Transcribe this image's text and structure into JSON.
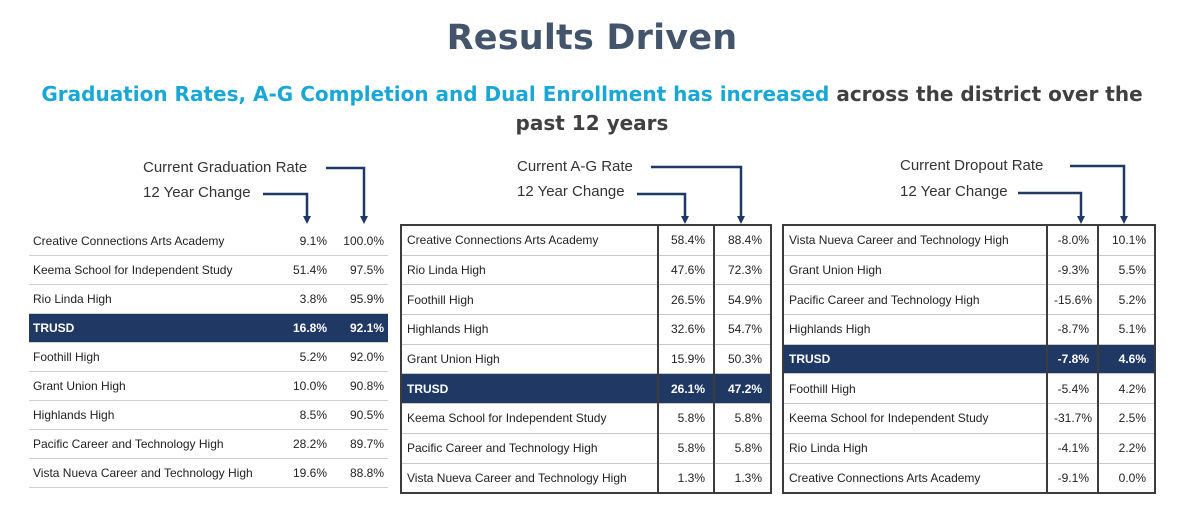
{
  "title": "Results Driven",
  "subtitle": {
    "highlight": "Graduation Rates, A-G Completion and Dual Enrollment has increased",
    "rest": " across the district over the past 12 years"
  },
  "colors": {
    "title": "#44546a",
    "highlight_text": "#1aa7d6",
    "highlight_row": "#1f3864",
    "arrow": "#1f3864"
  },
  "graduation": {
    "rate_label": "Current Graduation Rate",
    "change_label": "12 Year Change",
    "rows": [
      {
        "school": "Creative Connections Arts Academy",
        "change": "9.1%",
        "rate": "100.0%",
        "highlight": false
      },
      {
        "school": "Keema School for Independent Study",
        "change": "51.4%",
        "rate": "97.5%",
        "highlight": false
      },
      {
        "school": "Rio Linda High",
        "change": "3.8%",
        "rate": "95.9%",
        "highlight": false
      },
      {
        "school": "TRUSD",
        "change": "16.8%",
        "rate": "92.1%",
        "highlight": true
      },
      {
        "school": "Foothill High",
        "change": "5.2%",
        "rate": "92.0%",
        "highlight": false
      },
      {
        "school": "Grant Union High",
        "change": "10.0%",
        "rate": "90.8%",
        "highlight": false
      },
      {
        "school": "Highlands High",
        "change": "8.5%",
        "rate": "90.5%",
        "highlight": false
      },
      {
        "school": "Pacific Career and Technology High",
        "change": "28.2%",
        "rate": "89.7%",
        "highlight": false
      },
      {
        "school": "Vista Nueva Career and Technology High",
        "change": "19.6%",
        "rate": "88.8%",
        "highlight": false
      }
    ]
  },
  "ag": {
    "rate_label": "Current A-G  Rate",
    "change_label": "12 Year Change",
    "rows": [
      {
        "school": "Creative Connections Arts Academy",
        "change": "58.4%",
        "rate": "88.4%",
        "highlight": false
      },
      {
        "school": "Rio Linda High",
        "change": "47.6%",
        "rate": "72.3%",
        "highlight": false
      },
      {
        "school": "Foothill High",
        "change": "26.5%",
        "rate": "54.9%",
        "highlight": false
      },
      {
        "school": "Highlands High",
        "change": "32.6%",
        "rate": "54.7%",
        "highlight": false
      },
      {
        "school": "Grant Union High",
        "change": "15.9%",
        "rate": "50.3%",
        "highlight": false
      },
      {
        "school": "TRUSD",
        "change": "26.1%",
        "rate": "47.2%",
        "highlight": true
      },
      {
        "school": "Keema School for Independent Study",
        "change": "5.8%",
        "rate": "5.8%",
        "highlight": false
      },
      {
        "school": "Pacific Career and Technology High",
        "change": "5.8%",
        "rate": "5.8%",
        "highlight": false
      },
      {
        "school": "Vista Nueva Career and Technology High",
        "change": "1.3%",
        "rate": "1.3%",
        "highlight": false
      }
    ]
  },
  "dropout": {
    "rate_label": "Current Dropout  Rate",
    "change_label": "12 Year Change",
    "rows": [
      {
        "school": "Vista Nueva Career and Technology High",
        "change": "-8.0%",
        "rate": "10.1%",
        "highlight": false
      },
      {
        "school": "Grant Union High",
        "change": "-9.3%",
        "rate": "5.5%",
        "highlight": false
      },
      {
        "school": "Pacific Career and Technology High",
        "change": "-15.6%",
        "rate": "5.2%",
        "highlight": false
      },
      {
        "school": "Highlands High",
        "change": "-8.7%",
        "rate": "5.1%",
        "highlight": false
      },
      {
        "school": "TRUSD",
        "change": "-7.8%",
        "rate": "4.6%",
        "highlight": true
      },
      {
        "school": "Foothill High",
        "change": "-5.4%",
        "rate": "4.2%",
        "highlight": false
      },
      {
        "school": "Keema School for Independent Study",
        "change": "-31.7%",
        "rate": "2.5%",
        "highlight": false
      },
      {
        "school": "Rio Linda High",
        "change": "-4.1%",
        "rate": "2.2%",
        "highlight": false
      },
      {
        "school": "Creative Connections Arts Academy",
        "change": "-9.1%",
        "rate": "0.0%",
        "highlight": false
      }
    ]
  }
}
